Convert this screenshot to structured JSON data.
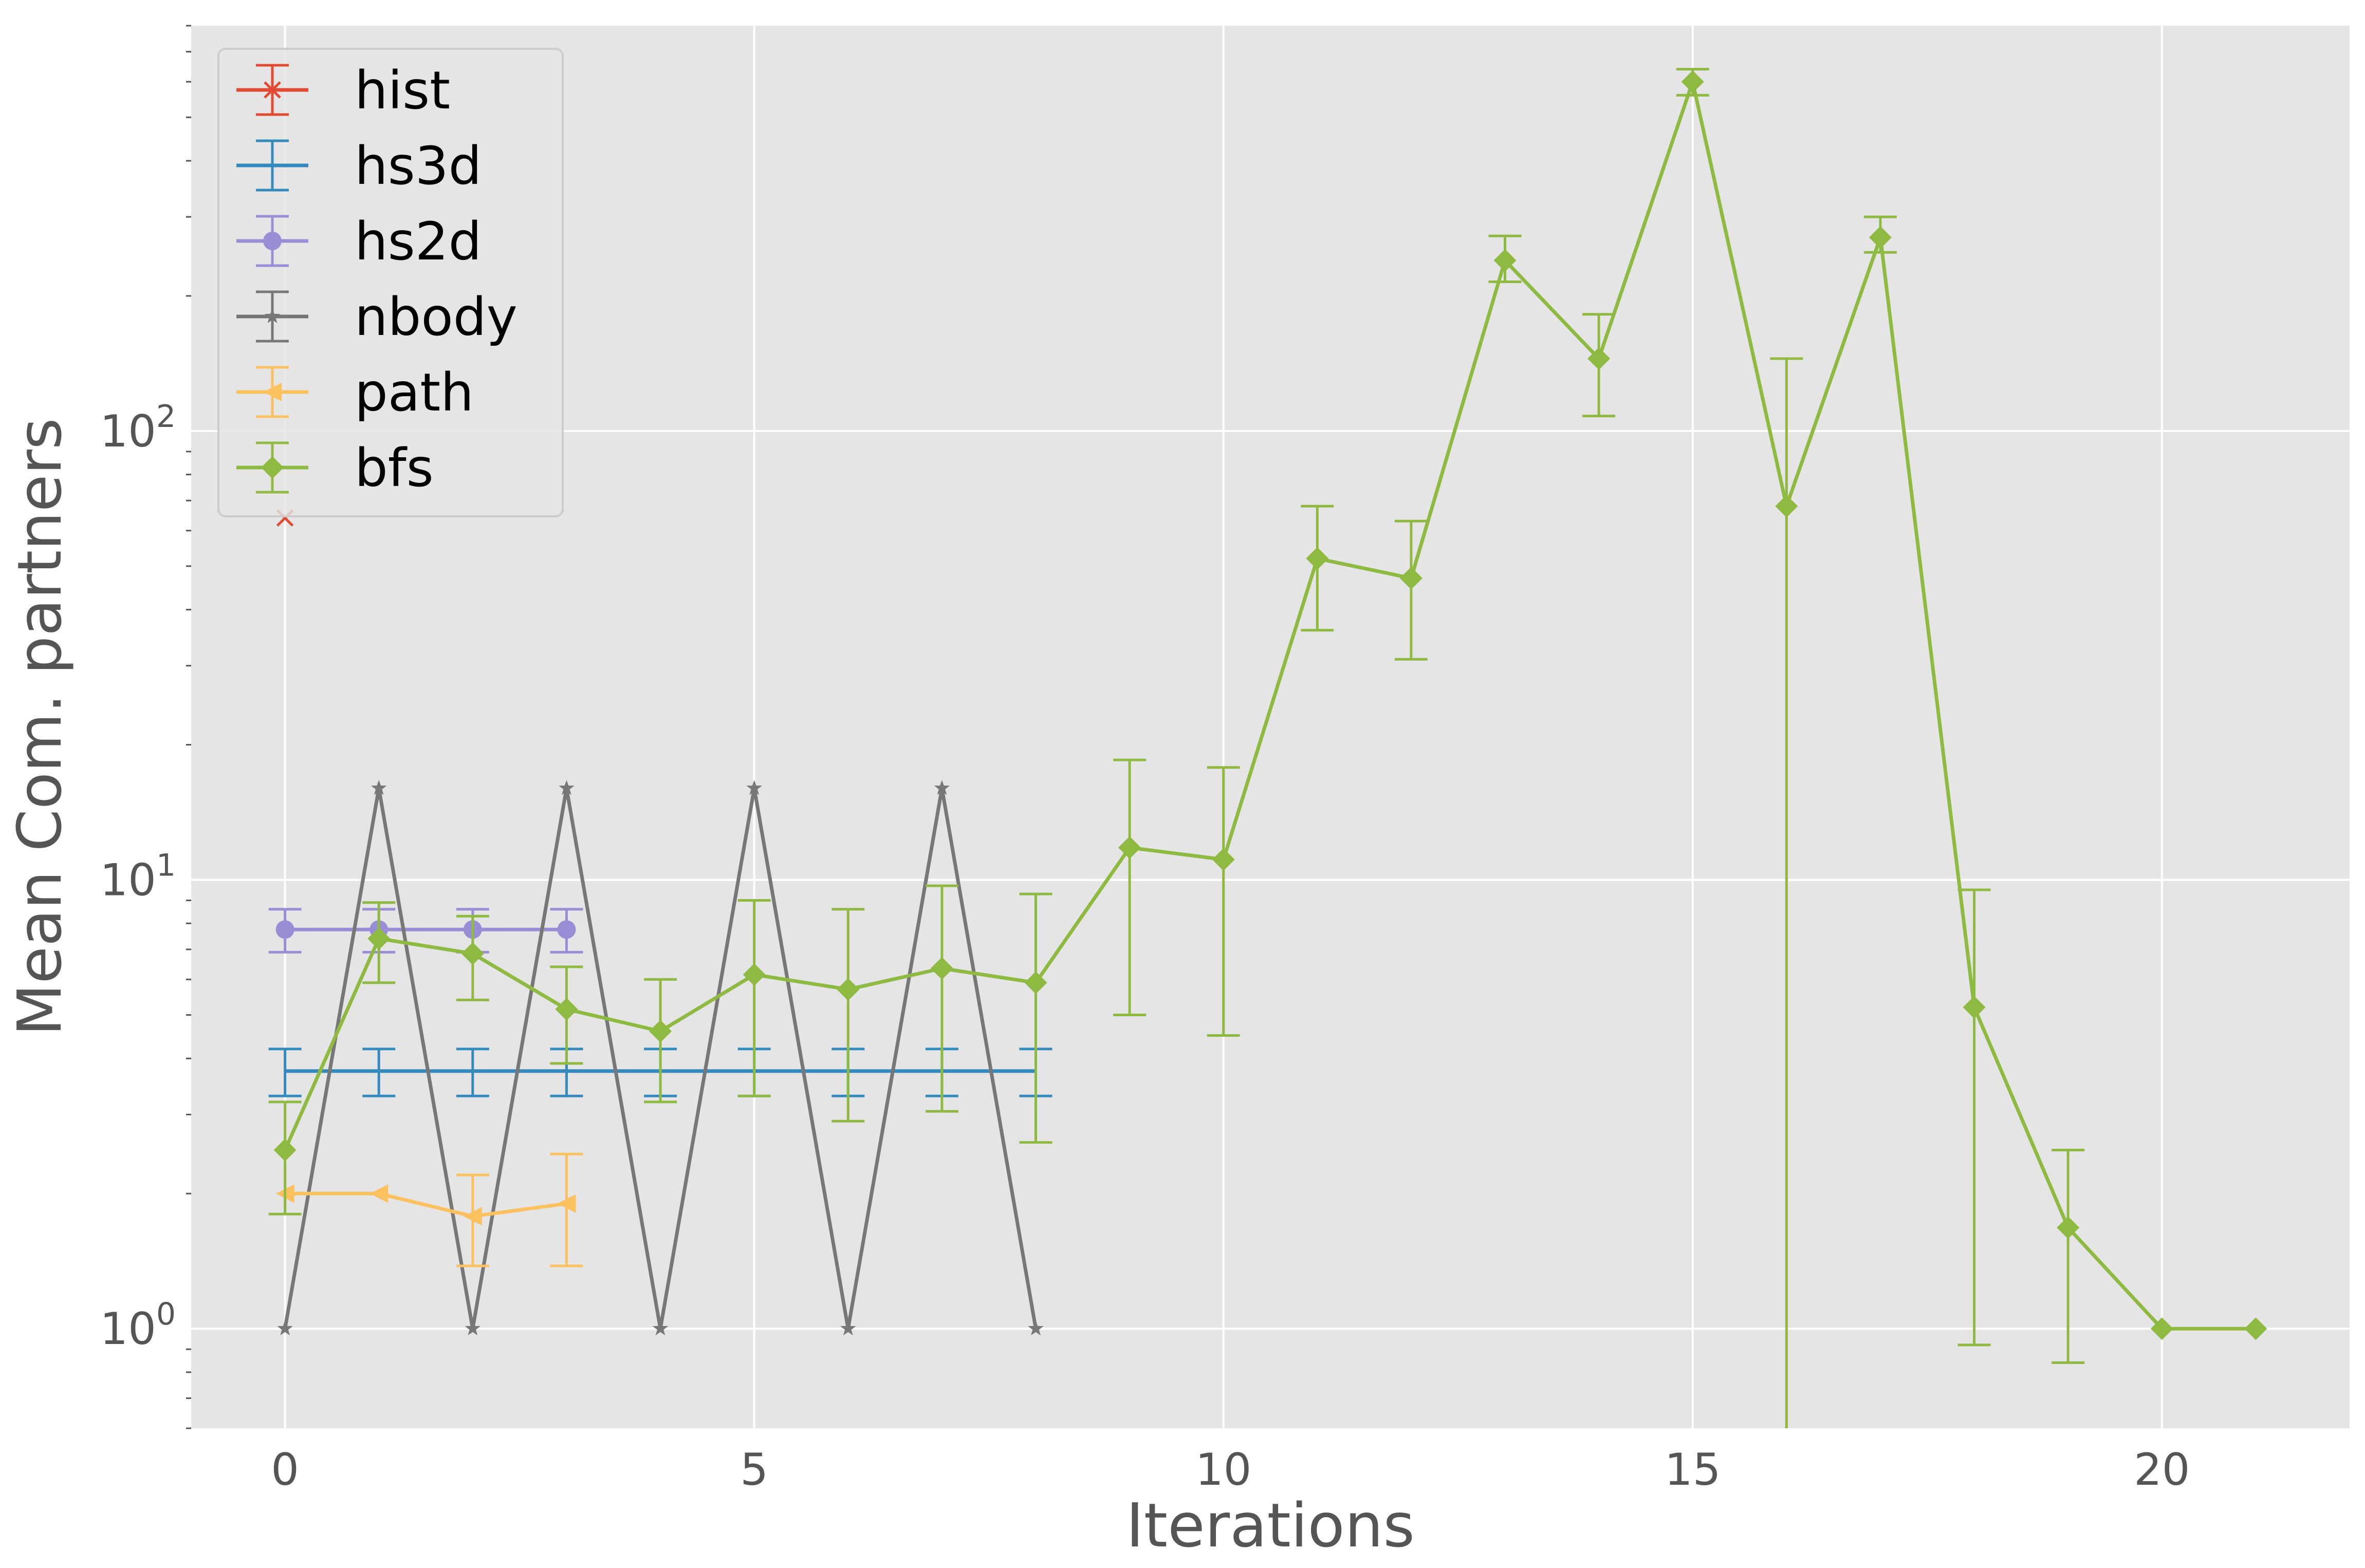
{
  "chart_data": {
    "type": "line",
    "xlabel": "Iterations",
    "ylabel": "Mean Com. partners",
    "xlim": [
      -1,
      22
    ],
    "ylim": [
      0.6,
      800
    ],
    "yscale": "log",
    "xticks": [
      0,
      5,
      10,
      15,
      20
    ],
    "xtick_labels": [
      "0",
      "5",
      "10",
      "15",
      "20"
    ],
    "yticks": [
      1,
      10,
      100
    ],
    "ytick_labels": [
      {
        "base": "10",
        "exp": "0"
      },
      {
        "base": "10",
        "exp": "1"
      },
      {
        "base": "10",
        "exp": "2"
      }
    ],
    "grid": true,
    "legend_position": "top-left",
    "series": [
      {
        "name": "hist",
        "color": "#E24A33",
        "marker": "x",
        "x": [
          0
        ],
        "y": [
          64
        ],
        "yerr_low": [
          64
        ],
        "yerr_high": [
          64
        ]
      },
      {
        "name": "hs3d",
        "color": "#348ABD",
        "marker": "none",
        "x": [
          0,
          1,
          2,
          3,
          4,
          5,
          6,
          7,
          8
        ],
        "y": [
          3.75,
          3.75,
          3.75,
          3.75,
          3.75,
          3.75,
          3.75,
          3.75,
          3.75
        ],
        "yerr_low": [
          3.3,
          3.3,
          3.3,
          3.3,
          3.3,
          3.3,
          3.3,
          3.3,
          3.3
        ],
        "yerr_high": [
          4.2,
          4.2,
          4.2,
          4.2,
          4.2,
          4.2,
          4.2,
          4.2,
          4.2
        ]
      },
      {
        "name": "hs2d",
        "color": "#988ED5",
        "marker": "circle",
        "x": [
          0,
          1,
          2,
          3
        ],
        "y": [
          7.75,
          7.75,
          7.75,
          7.75
        ],
        "yerr_low": [
          6.9,
          6.9,
          6.9,
          6.9
        ],
        "yerr_high": [
          8.6,
          8.6,
          8.6,
          8.6
        ]
      },
      {
        "name": "nbody",
        "color": "#777777",
        "marker": "star",
        "x": [
          0,
          1,
          2,
          3,
          4,
          5,
          6,
          7,
          8
        ],
        "y": [
          1,
          16,
          1,
          16,
          1,
          16,
          1,
          16,
          1
        ],
        "yerr_low": [
          1,
          16,
          1,
          16,
          1,
          16,
          1,
          16,
          1
        ],
        "yerr_high": [
          1,
          16,
          1,
          16,
          1,
          16,
          1,
          16,
          1
        ]
      },
      {
        "name": "path",
        "color": "#FBC15E",
        "marker": "triangle-left",
        "x": [
          0,
          1,
          2,
          3
        ],
        "y": [
          2.0,
          2.0,
          1.78,
          1.9
        ],
        "yerr_low": [
          2.0,
          2.0,
          1.38,
          1.38
        ],
        "yerr_high": [
          2.0,
          2.0,
          2.2,
          2.45
        ]
      },
      {
        "name": "bfs",
        "color": "#8EBA42",
        "marker": "diamond",
        "x": [
          0,
          1,
          2,
          3,
          4,
          5,
          6,
          7,
          8,
          9,
          10,
          11,
          12,
          13,
          14,
          15,
          16,
          17,
          18,
          19,
          20,
          21
        ],
        "y": [
          2.5,
          7.4,
          6.85,
          5.15,
          4.6,
          6.15,
          5.7,
          6.35,
          5.9,
          11.8,
          11.1,
          52,
          47,
          240,
          145,
          600,
          68,
          270,
          5.2,
          1.68,
          1.0,
          1.0
        ],
        "yerr_low": [
          1.8,
          5.9,
          5.4,
          3.9,
          3.2,
          3.3,
          2.9,
          3.05,
          2.6,
          5.0,
          4.5,
          36,
          31,
          215,
          108,
          560,
          0.6,
          250,
          0.92,
          0.84,
          1.0,
          1.0
        ],
        "yerr_high": [
          3.2,
          8.9,
          8.3,
          6.4,
          6.0,
          9.0,
          8.6,
          9.7,
          9.3,
          18.5,
          17.8,
          68,
          63,
          272,
          182,
          640,
          145,
          300,
          9.5,
          2.5,
          1.0,
          1.0
        ]
      }
    ]
  }
}
